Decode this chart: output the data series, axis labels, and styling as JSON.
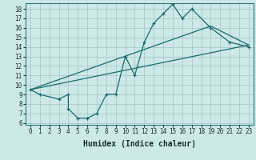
{
  "xlabel": "Humidex (Indice chaleur)",
  "bg_color": "#cce8e8",
  "line_color": "#1a6b6b",
  "grid_color": "#aacaca",
  "xlim": [
    -0.5,
    23.5
  ],
  "ylim": [
    5.8,
    18.6
  ],
  "yticks": [
    6,
    7,
    8,
    9,
    10,
    11,
    12,
    13,
    14,
    15,
    16,
    17,
    18
  ],
  "xticks": [
    0,
    1,
    2,
    3,
    4,
    5,
    6,
    7,
    8,
    9,
    10,
    11,
    12,
    13,
    14,
    15,
    16,
    17,
    18,
    19,
    20,
    21,
    22,
    23
  ],
  "line1_x": [
    0,
    1,
    3,
    4,
    4,
    5,
    6,
    7,
    8,
    9,
    10,
    11,
    12,
    13,
    14,
    15,
    16,
    17,
    19,
    21,
    23
  ],
  "line1_y": [
    9.5,
    9.0,
    8.5,
    9.0,
    7.5,
    6.5,
    6.5,
    7.0,
    9.0,
    9.0,
    13.0,
    11.0,
    14.5,
    16.5,
    17.5,
    18.5,
    17.0,
    18.0,
    16.0,
    14.5,
    14.0
  ],
  "line2_x": [
    0,
    19,
    23
  ],
  "line2_y": [
    9.5,
    16.2,
    14.2
  ],
  "line3_x": [
    0,
    23
  ],
  "line3_y": [
    9.5,
    14.2
  ],
  "tick_fontsize": 5.5,
  "xlabel_fontsize": 7
}
